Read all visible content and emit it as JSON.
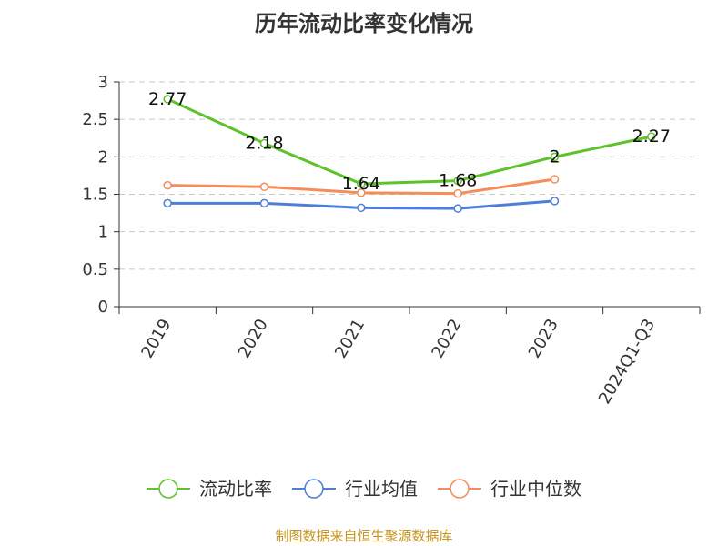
{
  "chart_data": {
    "type": "line",
    "title": "历年流动比率变化情况",
    "categories": [
      "2019",
      "2020",
      "2021",
      "2022",
      "2023",
      "2024Q1-Q3"
    ],
    "series": [
      {
        "name": "流动比率",
        "color": "#5ec22b",
        "values": [
          2.77,
          2.18,
          1.64,
          1.68,
          2,
          2.27
        ],
        "labels": [
          "2.77",
          "2.18",
          "1.64",
          "1.68",
          "2",
          "2.27"
        ],
        "show_labels": true
      },
      {
        "name": "行业均值",
        "color": "#4e7fd8",
        "values": [
          1.38,
          1.38,
          1.32,
          1.31,
          1.41,
          null
        ],
        "show_labels": false
      },
      {
        "name": "行业中位数",
        "color": "#f58d5a",
        "values": [
          1.62,
          1.6,
          1.52,
          1.51,
          1.7,
          null
        ],
        "show_labels": false
      }
    ],
    "y_ticks": [
      "0",
      "0.5",
      "1",
      "1.5",
      "2",
      "2.5",
      "3"
    ],
    "ylim": [
      0,
      3
    ],
    "grid": true,
    "legend_position": "bottom"
  },
  "source_note": "制图数据来自恒生聚源数据库"
}
